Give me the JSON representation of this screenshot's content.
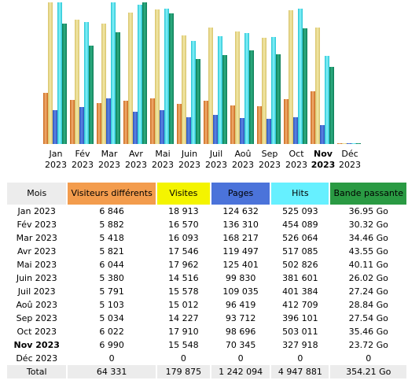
{
  "colors": {
    "visiteurs": "#f39c4d",
    "visites": "#f4f400",
    "pages": "#4b73da",
    "hits": "#66f0ff",
    "bande": "#2a9a43",
    "header_neutral": "#ececec"
  },
  "table": {
    "headers": {
      "mois": "Mois",
      "visiteurs": "Visiteurs différents",
      "visites": "Visites",
      "pages": "Pages",
      "hits": "Hits",
      "bande": "Bande passante"
    },
    "rows": [
      {
        "mois": "Jan 2023",
        "visiteurs": "6 846",
        "visites": "18 913",
        "pages": "124 632",
        "hits": "525 093",
        "bande": "36.95 Go"
      },
      {
        "mois": "Fév 2023",
        "visiteurs": "5 882",
        "visites": "16 570",
        "pages": "136 310",
        "hits": "454 089",
        "bande": "30.32 Go"
      },
      {
        "mois": "Mar 2023",
        "visiteurs": "5 418",
        "visites": "16 093",
        "pages": "168 217",
        "hits": "526 064",
        "bande": "34.46 Go"
      },
      {
        "mois": "Avr 2023",
        "visiteurs": "5 821",
        "visites": "17 546",
        "pages": "119 497",
        "hits": "517 085",
        "bande": "43.55 Go"
      },
      {
        "mois": "Mai 2023",
        "visiteurs": "6 044",
        "visites": "17 962",
        "pages": "125 401",
        "hits": "502 826",
        "bande": "40.11 Go"
      },
      {
        "mois": "Juin 2023",
        "visiteurs": "5 380",
        "visites": "14 516",
        "pages": "99 830",
        "hits": "381 601",
        "bande": "26.02 Go"
      },
      {
        "mois": "Juil 2023",
        "visiteurs": "5 791",
        "visites": "15 578",
        "pages": "109 035",
        "hits": "401 384",
        "bande": "27.24 Go"
      },
      {
        "mois": "Aoû 2023",
        "visiteurs": "5 103",
        "visites": "15 012",
        "pages": "96 419",
        "hits": "412 709",
        "bande": "28.84 Go"
      },
      {
        "mois": "Sep 2023",
        "visiteurs": "5 034",
        "visites": "14 227",
        "pages": "93 712",
        "hits": "396 101",
        "bande": "27.54 Go"
      },
      {
        "mois": "Oct 2023",
        "visiteurs": "6 022",
        "visites": "17 910",
        "pages": "98 696",
        "hits": "503 011",
        "bande": "35.46 Go"
      },
      {
        "mois": "Nov 2023",
        "visiteurs": "6 990",
        "visites": "15 548",
        "pages": "70 345",
        "hits": "327 918",
        "bande": "23.72 Go",
        "current": true
      },
      {
        "mois": "Déc 2023",
        "visiteurs": "0",
        "visites": "0",
        "pages": "0",
        "hits": "0",
        "bande": "0"
      }
    ],
    "total": {
      "label": "Total",
      "visiteurs": "64 331",
      "visites": "179 875",
      "pages": "1 242 094",
      "hits": "4 947 881",
      "bande": "354.21 Go"
    }
  },
  "chart_data": {
    "type": "bar",
    "categories": [
      {
        "month": "Jan",
        "year": "2023"
      },
      {
        "month": "Fév",
        "year": "2023"
      },
      {
        "month": "Mar",
        "year": "2023"
      },
      {
        "month": "Avr",
        "year": "2023"
      },
      {
        "month": "Mai",
        "year": "2023"
      },
      {
        "month": "Juin",
        "year": "2023"
      },
      {
        "month": "Juil",
        "year": "2023"
      },
      {
        "month": "Aoû",
        "year": "2023"
      },
      {
        "month": "Sep",
        "year": "2023"
      },
      {
        "month": "Oct",
        "year": "2023"
      },
      {
        "month": "Nov",
        "year": "2023",
        "current": true
      },
      {
        "month": "Déc",
        "year": "2023"
      }
    ],
    "series": [
      {
        "key": "visiteurs",
        "values": [
          6846,
          5882,
          5418,
          5821,
          6044,
          5380,
          5791,
          5103,
          5034,
          6022,
          6990,
          0
        ],
        "max": 18913
      },
      {
        "key": "visites",
        "values": [
          18913,
          16570,
          16093,
          17546,
          17962,
          14516,
          15578,
          15012,
          14227,
          17910,
          15548,
          0
        ],
        "max": 18913
      },
      {
        "key": "pages",
        "values": [
          124632,
          136310,
          168217,
          119497,
          125401,
          99830,
          109035,
          96419,
          93712,
          98696,
          70345,
          0
        ],
        "max": 526064
      },
      {
        "key": "hits",
        "values": [
          525093,
          454089,
          526064,
          517085,
          502826,
          381601,
          401384,
          412709,
          396101,
          503011,
          327918,
          0
        ],
        "max": 526064
      },
      {
        "key": "bande",
        "values": [
          36.95,
          30.32,
          34.46,
          43.55,
          40.11,
          26.02,
          27.24,
          28.84,
          27.54,
          35.46,
          23.72,
          0
        ],
        "max": 43.55
      }
    ],
    "grid": false,
    "legend": "none"
  }
}
